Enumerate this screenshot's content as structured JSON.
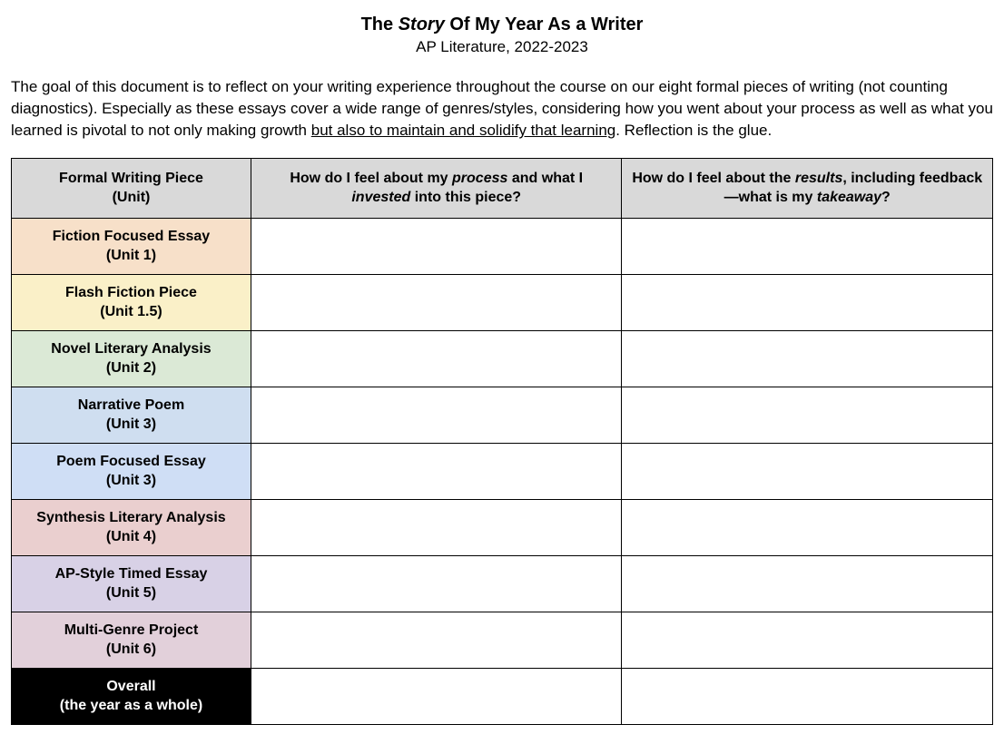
{
  "title_prefix": "The ",
  "title_italic": "Story",
  "title_suffix": " Of My Year As a Writer",
  "subtitle": "AP Literature, 2022-2023",
  "intro_before": "The goal of this document is to reflect on your writing experience throughout the course on our eight formal pieces of writing (not counting diagnostics). Especially as these essays cover a wide range of genres/styles, considering how you went about your process as well as what you learned is pivotal to not only making growth ",
  "intro_underline": "but also to maintain and solidify that learning",
  "intro_after": ". Reflection is the glue.",
  "columns": {
    "piece_line1": "Formal Writing Piece",
    "piece_line2": "(Unit)",
    "process_before": "How do I feel about my ",
    "process_italic1": "process",
    "process_mid": " and what I ",
    "process_italic2": "invested",
    "process_after": " into this piece?",
    "results_before": "How do I feel about the ",
    "results_italic1": "results",
    "results_mid": ", including feedback—what is my ",
    "results_italic2": "takeaway",
    "results_after": "?"
  },
  "rows": [
    {
      "name": "Fiction Focused Essay",
      "unit": "(Unit 1)",
      "bg": "#f7e0c9"
    },
    {
      "name": "Flash Fiction Piece",
      "unit": "(Unit 1.5)",
      "bg": "#faf0c8"
    },
    {
      "name": "Novel Literary Analysis",
      "unit": "(Unit 2)",
      "bg": "#dbe9d6"
    },
    {
      "name": "Narrative Poem",
      "unit": "(Unit 3)",
      "bg": "#cfdef0"
    },
    {
      "name": "Poem Focused Essay",
      "unit": "(Unit 3)",
      "bg": "#cfdef5"
    },
    {
      "name": "Synthesis Literary Analysis",
      "unit": "(Unit 4)",
      "bg": "#eacfcf"
    },
    {
      "name": "AP-Style Timed Essay",
      "unit": "(Unit 5)",
      "bg": "#d8d1e6"
    },
    {
      "name": "Multi-Genre Project",
      "unit": "(Unit 6)",
      "bg": "#e2d0da"
    }
  ],
  "overall_name": "Overall",
  "overall_unit": "(the year as a whole)"
}
